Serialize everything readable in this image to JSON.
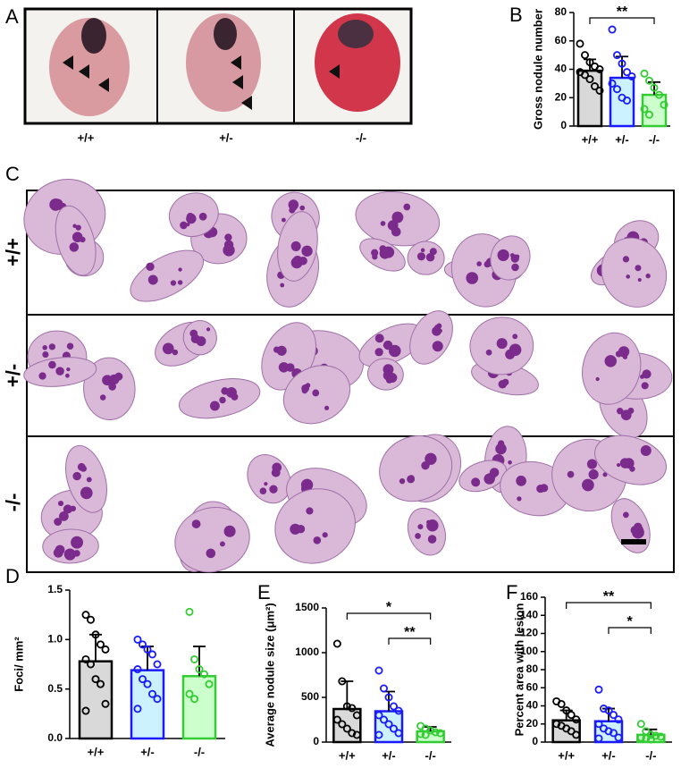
{
  "panels": [
    "A",
    "B",
    "C",
    "D",
    "E",
    "F"
  ],
  "photo_labels": [
    "+/+",
    "+/-",
    "-/-"
  ],
  "histology_rows": [
    "+/+",
    "+/-",
    "-/-"
  ],
  "chart_data": [
    {
      "type": "bar",
      "ylabel": "Gross nodule number",
      "categories": [
        "+/+",
        "+/-",
        "-/-"
      ],
      "values": [
        39,
        34,
        22
      ],
      "errors": [
        8,
        15,
        9
      ],
      "fills": [
        "#d9d9d9",
        "#ccf2ff",
        "#ccffcc"
      ],
      "colors": [
        "#000000",
        "#1a1aff",
        "#33cc33"
      ],
      "points": [
        [
          58,
          50,
          45,
          42,
          40,
          38,
          36,
          33,
          28,
          25
        ],
        [
          68,
          50,
          44,
          38,
          35,
          30,
          26,
          20,
          18
        ],
        [
          37,
          32,
          27,
          22,
          15,
          12,
          8
        ]
      ],
      "ylim": [
        0,
        80
      ],
      "yticks": [
        0,
        20,
        40,
        60,
        80
      ],
      "annotations": [
        "**"
      ]
    },
    {
      "type": "bar",
      "ylabel": "Foci/ mm²",
      "categories": [
        "+/+",
        "+/-",
        "-/-"
      ],
      "values": [
        0.78,
        0.69,
        0.63
      ],
      "errors": [
        0.27,
        0.24,
        0.3
      ],
      "fills": [
        "#d9d9d9",
        "#ccf2ff",
        "#ccffcc"
      ],
      "colors": [
        "#000000",
        "#1a1aff",
        "#33cc33"
      ],
      "points": [
        [
          1.25,
          1.2,
          1.05,
          0.95,
          0.9,
          0.8,
          0.75,
          0.6,
          0.55,
          0.35,
          0.28
        ],
        [
          1.0,
          0.95,
          0.9,
          0.85,
          0.75,
          0.7,
          0.6,
          0.55,
          0.45,
          0.4,
          0.3
        ],
        [
          1.28,
          0.8,
          0.7,
          0.65,
          0.55,
          0.45,
          0.4
        ]
      ],
      "ylim": [
        0,
        1.5
      ],
      "yticks": [
        {
          "value": 0,
          "label": "0.0"
        },
        0.5,
        {
          "value": 1,
          "label": "1.0"
        },
        1.5
      ],
      "annotations": []
    },
    {
      "type": "bar",
      "ylabel": "Average nodule size (μm²)",
      "categories": [
        "+/+",
        "+/-",
        "-/-"
      ],
      "values": [
        370,
        345,
        120
      ],
      "errors": [
        310,
        220,
        50
      ],
      "fills": [
        "#d9d9d9",
        "#ccf2ff",
        "#ccffcc"
      ],
      "colors": [
        "#000000",
        "#1a1aff",
        "#33cc33"
      ],
      "points": [
        [
          1100,
          680,
          400,
          380,
          300,
          250,
          200,
          150,
          100,
          80
        ],
        [
          800,
          600,
          500,
          400,
          350,
          300,
          250,
          200,
          150,
          100,
          80
        ],
        [
          180,
          150,
          130,
          110,
          100,
          90,
          80
        ]
      ],
      "ylim": [
        0,
        1500
      ],
      "yticks": [
        0,
        500,
        1000,
        1500
      ],
      "annotations": [
        "*",
        "**"
      ]
    },
    {
      "type": "bar",
      "ylabel": "Percent area with lesion",
      "categories": [
        "+/+",
        "+/-",
        "-/-"
      ],
      "values": [
        24,
        23,
        8
      ],
      "errors": [
        11,
        14,
        6
      ],
      "fills": [
        "#d9d9d9",
        "#ccf2ff",
        "#ccffcc"
      ],
      "colors": [
        "#000000",
        "#1a1aff",
        "#33cc33"
      ],
      "points": [
        [
          45,
          42,
          35,
          30,
          25,
          20,
          18,
          15,
          12,
          8
        ],
        [
          58,
          37,
          35,
          30,
          25,
          20,
          15,
          12,
          10,
          5,
          4
        ],
        [
          20,
          12,
          8,
          7,
          6,
          5,
          4,
          3
        ]
      ],
      "ylim": [
        0,
        160
      ],
      "yticks": [
        0,
        20,
        40,
        60,
        80,
        100,
        120,
        140,
        160
      ],
      "annotations": [
        "**",
        "*"
      ]
    }
  ]
}
